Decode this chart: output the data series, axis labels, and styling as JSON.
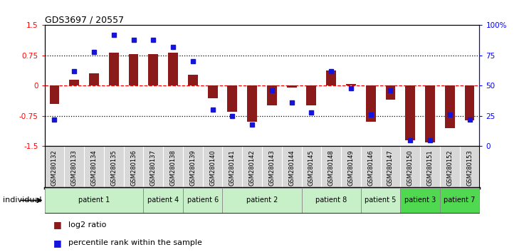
{
  "title": "GDS3697 / 20557",
  "samples": [
    "GSM280132",
    "GSM280133",
    "GSM280134",
    "GSM280135",
    "GSM280136",
    "GSM280137",
    "GSM280138",
    "GSM280139",
    "GSM280140",
    "GSM280141",
    "GSM280142",
    "GSM280143",
    "GSM280144",
    "GSM280145",
    "GSM280148",
    "GSM280149",
    "GSM280146",
    "GSM280147",
    "GSM280150",
    "GSM280151",
    "GSM280152",
    "GSM280153"
  ],
  "log2_ratio": [
    -0.45,
    0.15,
    0.3,
    0.82,
    0.78,
    0.78,
    0.82,
    0.28,
    -0.32,
    -0.65,
    -0.9,
    -0.48,
    -0.05,
    -0.48,
    0.38,
    0.05,
    -0.9,
    -0.35,
    -1.35,
    -1.4,
    -1.05,
    -0.85
  ],
  "percentile": [
    22,
    62,
    78,
    92,
    88,
    88,
    82,
    70,
    30,
    25,
    18,
    46,
    36,
    28,
    62,
    48,
    26,
    46,
    5,
    5,
    26,
    22
  ],
  "patients": [
    {
      "label": "patient 1",
      "start": 0,
      "end": 5,
      "color": "#c8f0c8"
    },
    {
      "label": "patient 4",
      "start": 5,
      "end": 7,
      "color": "#c8f0c8"
    },
    {
      "label": "patient 6",
      "start": 7,
      "end": 9,
      "color": "#c8f0c8"
    },
    {
      "label": "patient 2",
      "start": 9,
      "end": 13,
      "color": "#c8f0c8"
    },
    {
      "label": "patient 8",
      "start": 13,
      "end": 16,
      "color": "#c8f0c8"
    },
    {
      "label": "patient 5",
      "start": 16,
      "end": 18,
      "color": "#c8f0c8"
    },
    {
      "label": "patient 3",
      "start": 18,
      "end": 20,
      "color": "#50d850"
    },
    {
      "label": "patient 7",
      "start": 20,
      "end": 22,
      "color": "#50d850"
    }
  ],
  "bar_color": "#8B1A1A",
  "dot_color": "#1414dd",
  "ylim_left": [
    -1.5,
    1.5
  ],
  "ylim_right": [
    0,
    100
  ],
  "yticks_left": [
    -1.5,
    -0.75,
    0,
    0.75,
    1.5
  ],
  "yticks_right": [
    0,
    25,
    50,
    75,
    100
  ],
  "legend_log2": "log2 ratio",
  "legend_pct": "percentile rank within the sample",
  "xlabel_bg": "#d8d8d8",
  "individual_label": "individual"
}
